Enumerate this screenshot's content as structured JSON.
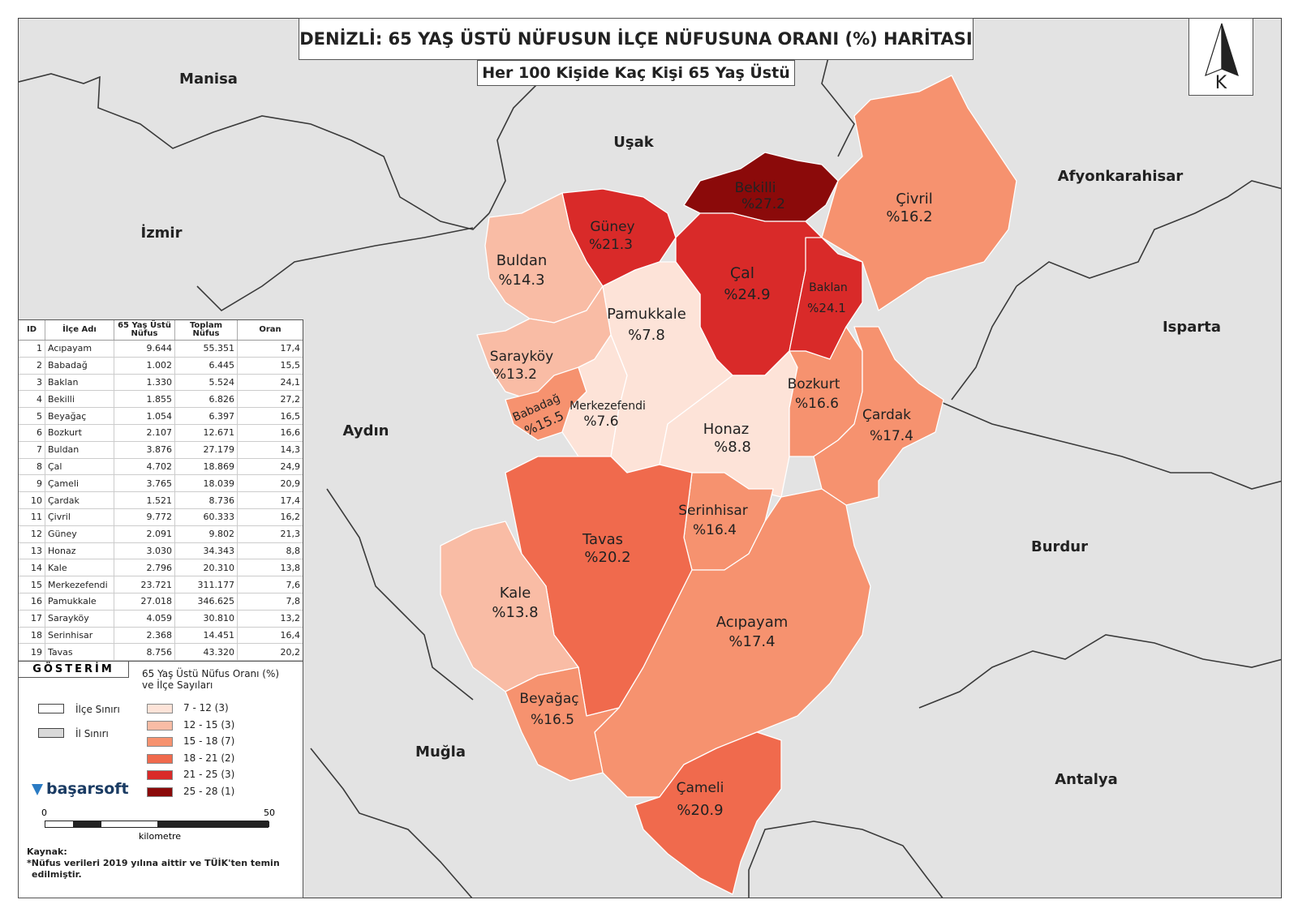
{
  "title": "DENİZLİ: 65 YAŞ ÜSTÜ NÜFUSUN İLÇE NÜFUSUNA ORANI (%) HARİTASI",
  "subtitle": "Her 100 Kişide Kaç Kişi 65 Yaş Üstü",
  "north_letter": "K",
  "provinces": [
    "Manisa",
    "Uşak",
    "Afyonkarahisar",
    "İzmir",
    "Isparta",
    "Aydın",
    "Burdur",
    "Muğla",
    "Antalya"
  ],
  "map_labels": [
    {
      "name": "Bekilli",
      "value": "%27.2"
    },
    {
      "name": "Çivril",
      "value": "%16.2"
    },
    {
      "name": "Güney",
      "value": "%21.3"
    },
    {
      "name": "Buldan",
      "value": "%14.3"
    },
    {
      "name": "Çal",
      "value": "%24.9"
    },
    {
      "name": "Baklan",
      "value": "%24.1"
    },
    {
      "name": "Pamukkale",
      "value": "%7.8"
    },
    {
      "name": "Sarayköy",
      "value": "%13.2"
    },
    {
      "name": "Babadağ",
      "value": "%15.5"
    },
    {
      "name": "Merkezefendi",
      "value": "%7.6"
    },
    {
      "name": "Honaz",
      "value": "%8.8"
    },
    {
      "name": "Bozkurt",
      "value": "%16.6"
    },
    {
      "name": "Çardak",
      "value": "%17.4"
    },
    {
      "name": "Serinhisar",
      "value": "%16.4"
    },
    {
      "name": "Tavas",
      "value": "%20.2"
    },
    {
      "name": "Kale",
      "value": "%13.8"
    },
    {
      "name": "Acıpayam",
      "value": "%17.4"
    },
    {
      "name": "Beyağaç",
      "value": "%16.5"
    },
    {
      "name": "Çameli",
      "value": "%20.9"
    }
  ],
  "table": {
    "headers": [
      "ID",
      "İlçe Adı",
      "65 Yaş Üstü Nüfus",
      "Toplam Nüfus",
      "Oran"
    ],
    "rows": [
      [
        "1",
        "Acıpayam",
        "9.644",
        "55.351",
        "17,4"
      ],
      [
        "2",
        "Babadağ",
        "1.002",
        "6.445",
        "15,5"
      ],
      [
        "3",
        "Baklan",
        "1.330",
        "5.524",
        "24,1"
      ],
      [
        "4",
        "Bekilli",
        "1.855",
        "6.826",
        "27,2"
      ],
      [
        "5",
        "Beyağaç",
        "1.054",
        "6.397",
        "16,5"
      ],
      [
        "6",
        "Bozkurt",
        "2.107",
        "12.671",
        "16,6"
      ],
      [
        "7",
        "Buldan",
        "3.876",
        "27.179",
        "14,3"
      ],
      [
        "8",
        "Çal",
        "4.702",
        "18.869",
        "24,9"
      ],
      [
        "9",
        "Çameli",
        "3.765",
        "18.039",
        "20,9"
      ],
      [
        "10",
        "Çardak",
        "1.521",
        "8.736",
        "17,4"
      ],
      [
        "11",
        "Çivril",
        "9.772",
        "60.333",
        "16,2"
      ],
      [
        "12",
        "Güney",
        "2.091",
        "9.802",
        "21,3"
      ],
      [
        "13",
        "Honaz",
        "3.030",
        "34.343",
        "8,8"
      ],
      [
        "14",
        "Kale",
        "2.796",
        "20.310",
        "13,8"
      ],
      [
        "15",
        "Merkezefendi",
        "23.721",
        "311.177",
        "7,6"
      ],
      [
        "16",
        "Pamukkale",
        "27.018",
        "346.625",
        "7,8"
      ],
      [
        "17",
        "Sarayköy",
        "4.059",
        "30.810",
        "13,2"
      ],
      [
        "18",
        "Serinhisar",
        "2.368",
        "14.451",
        "16,4"
      ],
      [
        "19",
        "Tavas",
        "8.756",
        "43.320",
        "20,2"
      ]
    ]
  },
  "legend": {
    "title": "GÖSTERİM",
    "heading_line1": "65 Yaş Üstü Nüfus Oranı (%)",
    "heading_line2": "ve İlçe Sayıları",
    "district_boundary": "İlçe Sınırı",
    "province_boundary": "İl Sınırı",
    "classes": [
      {
        "label": "7  -  12  (3)",
        "color": "#fde3d8"
      },
      {
        "label": "12  -  15  (3)",
        "color": "#f9bca5"
      },
      {
        "label": "15  -  18  (7)",
        "color": "#f6926f"
      },
      {
        "label": "18  -  21  (2)",
        "color": "#f06a4d"
      },
      {
        "label": "21  -  25  (3)",
        "color": "#d92a29"
      },
      {
        "label": "25  -  28  (1)",
        "color": "#8b0a0a"
      }
    ]
  },
  "brand": "başarsoft",
  "scale": {
    "start": "0",
    "end": "50",
    "unit": "kilometre"
  },
  "source": {
    "line1": "Kaynak:",
    "line2": "*Nüfus verileri 2019 yılına aittir ve TÜİK'ten temin",
    "line3": "edilmiştir."
  },
  "colors": {
    "background": "#e3e3e3",
    "province_border": "#3a3a3a",
    "district_border": "#ffffff"
  }
}
